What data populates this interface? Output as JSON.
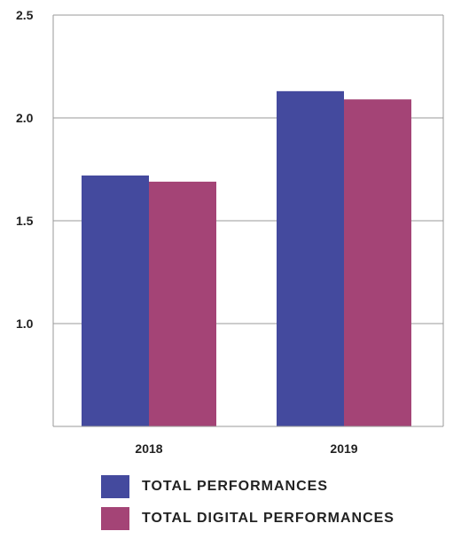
{
  "chart_data": {
    "type": "bar",
    "title": "",
    "xlabel": "",
    "ylabel": "",
    "categories": [
      "2018",
      "2019"
    ],
    "series": [
      {
        "name": "TOTAL PERFORMANCES",
        "values": [
          1.72,
          2.13
        ],
        "color": "#444a9e"
      },
      {
        "name": "TOTAL DIGITAL PERFORMANCES",
        "values": [
          1.69,
          2.09
        ],
        "color": "#a44476"
      }
    ],
    "ylim": [
      0.5,
      2.5
    ],
    "yticks": [
      1.0,
      1.5,
      2.0,
      2.5
    ],
    "ytick_labels": [
      "1.0",
      "1.5",
      "2.0",
      "2.5"
    ],
    "grid": true,
    "legend_position": "bottom-center"
  }
}
